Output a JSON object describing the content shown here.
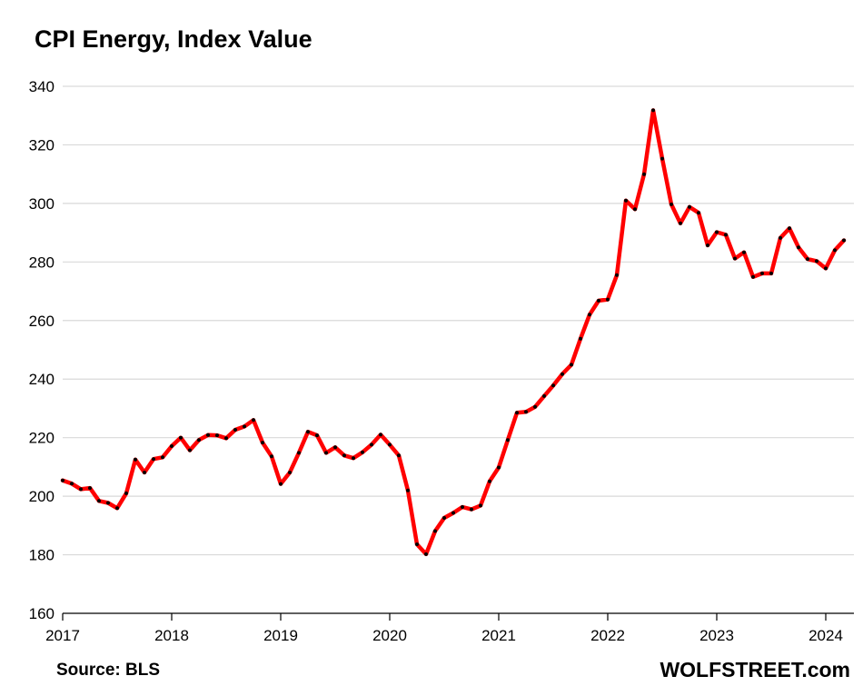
{
  "header": {
    "title": "CPI Energy, Index Value"
  },
  "footer": {
    "source": "Source: BLS",
    "brand": "WOLFSTREET.com"
  },
  "colors": {
    "line": "#ff0000",
    "marker": "#000000",
    "grid": "#d9d9d9",
    "axis": "#000000"
  },
  "chart_data": {
    "type": "line",
    "title": "CPI Energy, Index Value",
    "xlabel": "",
    "ylabel": "",
    "ylim": [
      160,
      340
    ],
    "yticks": [
      160,
      180,
      200,
      220,
      240,
      260,
      280,
      300,
      320,
      340
    ],
    "xticks": [
      "2017",
      "2018",
      "2019",
      "2020",
      "2021",
      "2022",
      "2023",
      "2024"
    ],
    "grid": true,
    "legend": "none",
    "series": [
      {
        "x_start": "2017-01",
        "frequency": "monthly",
        "values": [
          205.4,
          204.3,
          202.4,
          202.8,
          198.4,
          197.7,
          195.9,
          201.0,
          212.5,
          208.1,
          212.7,
          213.3,
          217.1,
          220.0,
          215.7,
          219.2,
          220.9,
          220.8,
          219.8,
          222.7,
          223.8,
          226.0,
          218.3,
          213.6,
          204.2,
          208.1,
          214.8,
          222.0,
          220.8,
          214.8,
          216.7,
          213.9,
          213.0,
          215.0,
          217.6,
          221.0,
          217.6,
          213.9,
          202.0,
          183.6,
          180.2,
          188.1,
          192.6,
          194.3,
          196.3,
          195.5,
          196.8,
          205.1,
          209.8,
          219.2,
          228.5,
          228.8,
          230.5,
          234.2,
          237.8,
          241.7,
          244.9,
          253.8,
          262.0,
          266.8,
          267.2,
          275.5,
          301.0,
          298.0,
          310.0,
          331.8,
          315.3,
          299.7,
          293.2,
          298.8,
          296.8,
          285.7,
          290.2,
          289.3,
          281.2,
          283.3,
          274.9,
          276.1,
          276.1,
          288.2,
          291.5,
          285.0,
          281.0,
          280.3,
          277.8,
          284.0,
          287.4
        ]
      }
    ]
  }
}
